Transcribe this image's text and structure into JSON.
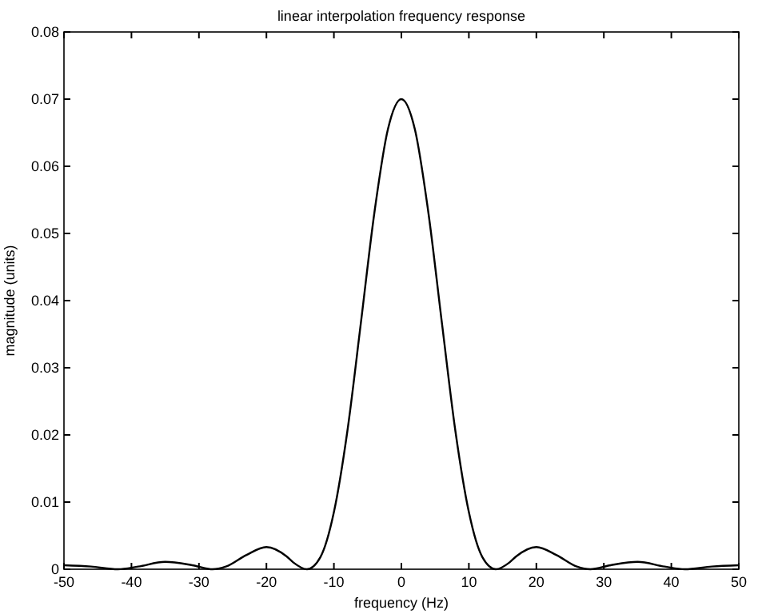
{
  "chart_data": {
    "type": "line",
    "title": "linear interpolation frequency response",
    "xlabel": "frequency (Hz)",
    "ylabel": "magnitude (units)",
    "x": [
      -50,
      -46,
      -42,
      -39,
      -35,
      -31,
      -28,
      -26,
      -23,
      -20,
      -17,
      -16,
      -14,
      -12,
      -10,
      -8,
      -6,
      -4,
      -2,
      0,
      2,
      4,
      6,
      8,
      10,
      12,
      14,
      16,
      17,
      20,
      23,
      26,
      28,
      31,
      35,
      39,
      42,
      46,
      50
    ],
    "series": [
      {
        "color": "#000000",
        "values": [
          0.0006,
          0.0004,
          0,
          0.0004,
          0.0011,
          0.0006,
          0,
          0.0004,
          0.0021,
          0.0033,
          0.0019,
          0.001,
          0,
          0.0018,
          0.0085,
          0.0206,
          0.0367,
          0.0531,
          0.0655,
          0.07,
          0.0655,
          0.0531,
          0.0367,
          0.0206,
          0.0085,
          0.0018,
          0,
          0.001,
          0.0019,
          0.0033,
          0.0021,
          0.0004,
          0,
          0.0006,
          0.0011,
          0.0004,
          0,
          0.0004,
          0.0006
        ]
      }
    ],
    "xlim": [
      -50,
      50
    ],
    "xticks": [
      -50,
      -40,
      -30,
      -20,
      -10,
      0,
      10,
      20,
      30,
      40,
      50
    ],
    "ylim": [
      0,
      0.08
    ],
    "yticks": [
      0,
      0.01,
      0.02,
      0.03,
      0.04,
      0.05,
      0.06,
      0.07,
      0.08
    ],
    "grid": false,
    "marker": "none",
    "line_style": "solid"
  }
}
